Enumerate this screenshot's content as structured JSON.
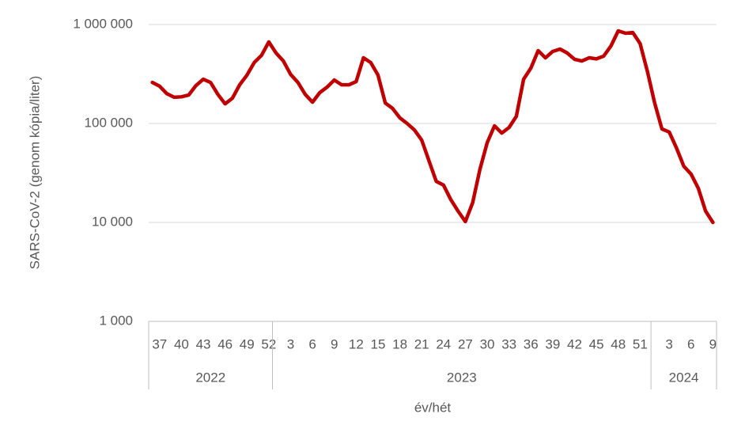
{
  "chart_data": {
    "type": "line",
    "y_axis_label": "SARS-CoV-2 (genom kópia/liter)",
    "x_axis_label": "év/hét",
    "log_scale": true,
    "grid": true,
    "color": "#c00000",
    "ylim": [
      1000,
      1000000
    ],
    "yticks": [
      {
        "value": 1000,
        "label": "1 000"
      },
      {
        "value": 10000,
        "label": "10 000"
      },
      {
        "value": 100000,
        "label": "100 000"
      },
      {
        "value": 1000000,
        "label": "1 000 000"
      }
    ],
    "category_groups": [
      {
        "label": "2022",
        "size": 17
      },
      {
        "label": "2023",
        "size": 52
      },
      {
        "label": "2024",
        "size": 9
      }
    ],
    "categories": [
      null,
      "37",
      null,
      null,
      "40",
      null,
      null,
      "43",
      null,
      null,
      "46",
      null,
      null,
      "49",
      null,
      null,
      "52",
      null,
      null,
      "3",
      null,
      null,
      "6",
      null,
      null,
      "9",
      null,
      null,
      "12",
      null,
      null,
      "15",
      null,
      null,
      "18",
      null,
      null,
      "21",
      null,
      null,
      "24",
      null,
      null,
      "27",
      null,
      null,
      "30",
      null,
      null,
      "33",
      null,
      null,
      "36",
      null,
      null,
      "39",
      null,
      null,
      "42",
      null,
      null,
      "45",
      null,
      null,
      "48",
      null,
      null,
      "51",
      null,
      null,
      null,
      "3",
      null,
      null,
      "6",
      null,
      null,
      "9"
    ],
    "values": [
      260000,
      238000,
      200000,
      184000,
      186000,
      194000,
      242000,
      280000,
      260000,
      197000,
      158000,
      180000,
      246000,
      308000,
      413000,
      488000,
      667000,
      515000,
      428000,
      313000,
      260000,
      197000,
      164000,
      205000,
      233000,
      275000,
      246000,
      246000,
      265000,
      461000,
      413000,
      308000,
      161000,
      142000,
      114000,
      100000,
      86000,
      68000,
      42000,
      26000,
      23800,
      17000,
      13000,
      10200,
      15800,
      34400,
      64000,
      94600,
      80000,
      91000,
      118000,
      280000,
      363000,
      545000,
      461000,
      535000,
      565000,
      515000,
      445000,
      428000,
      461000,
      450000,
      480000,
      608000,
      863000,
      817000,
      830000,
      643000,
      337000,
      161000,
      88000,
      82000,
      56500,
      37000,
      30800,
      22100,
      13000,
      10000
    ]
  }
}
